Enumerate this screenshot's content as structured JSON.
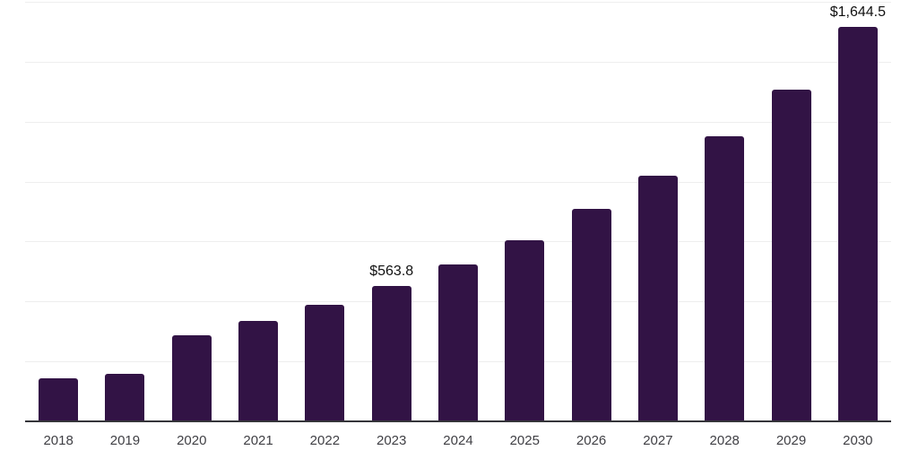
{
  "chart_data": {
    "type": "bar",
    "title": "",
    "xlabel": "",
    "ylabel": "",
    "categories": [
      "2018",
      "2019",
      "2020",
      "2021",
      "2022",
      "2023",
      "2024",
      "2025",
      "2026",
      "2027",
      "2028",
      "2029",
      "2030"
    ],
    "values": [
      178,
      200,
      360,
      417,
      486,
      563.8,
      656,
      756,
      887,
      1025,
      1188,
      1382,
      1644.5
    ],
    "data_labels": [
      {
        "category": "2023",
        "text": "$563.8"
      },
      {
        "category": "2030",
        "text": "$1,644.5"
      }
    ],
    "ylim": [
      0,
      1750
    ],
    "y_gridline_interval": 250,
    "grid": true,
    "legend": false,
    "y_axis_tick_labels_visible": false,
    "colors": {
      "bar": "#321345",
      "axis_line": "#35353a",
      "gridline": "#eeeeee",
      "tick_label": "#3f3f44",
      "data_label": "#111111",
      "background": "#ffffff"
    }
  }
}
